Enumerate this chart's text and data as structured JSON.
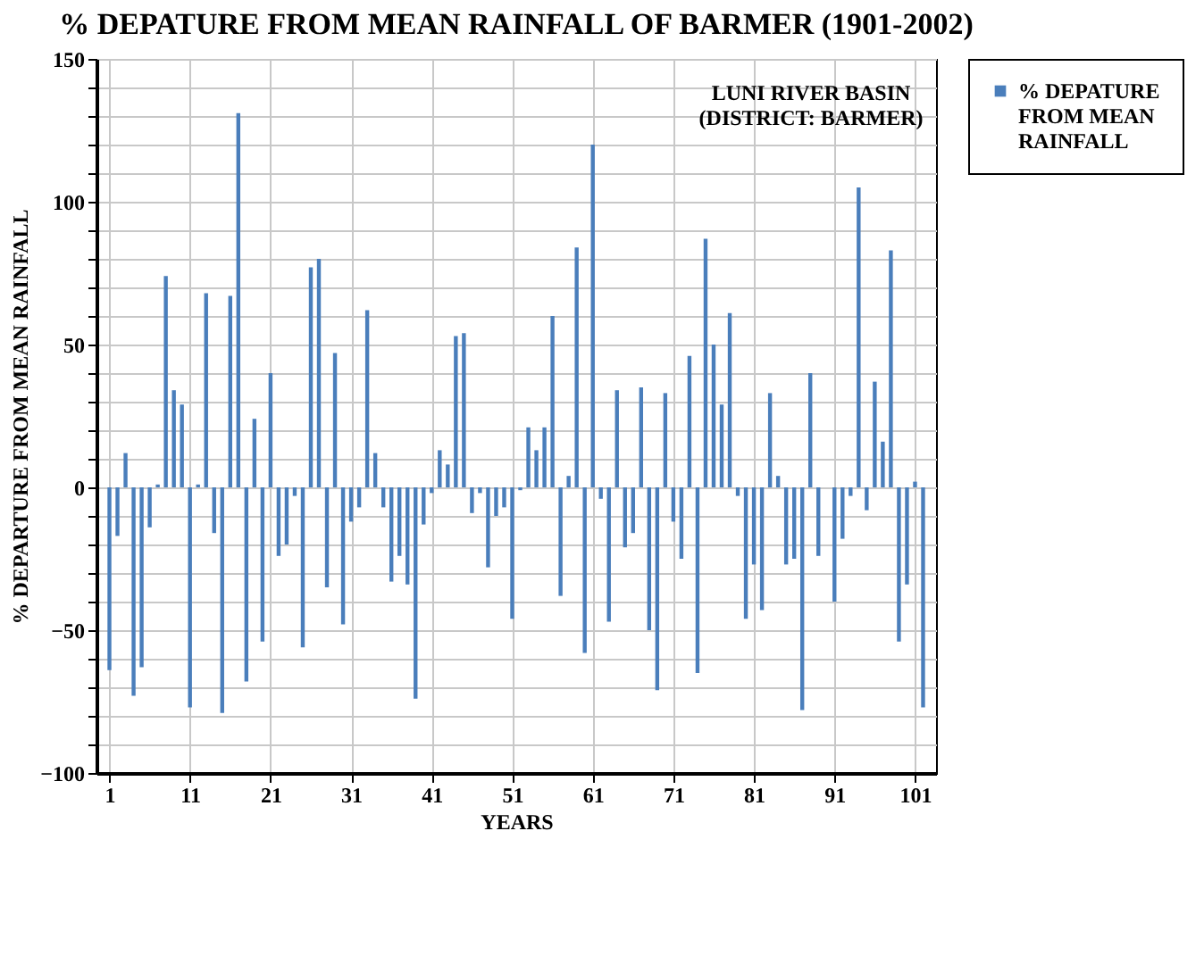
{
  "chart_data": {
    "type": "bar",
    "title": "% DEPATURE FROM MEAN RAINFALL OF BARMER (1901-2002)",
    "xlabel": "YEARS",
    "ylabel": "% DEPARTURE FROM MEAN RAINFALL",
    "annotations": [
      "LUNI RIVER BASIN\n(DISTRICT: BARMER)"
    ],
    "x": [
      1,
      2,
      3,
      4,
      5,
      6,
      7,
      8,
      9,
      10,
      11,
      12,
      13,
      14,
      15,
      16,
      17,
      18,
      19,
      20,
      21,
      22,
      23,
      24,
      25,
      26,
      27,
      28,
      29,
      30,
      31,
      32,
      33,
      34,
      35,
      36,
      37,
      38,
      39,
      40,
      41,
      42,
      43,
      44,
      45,
      46,
      47,
      48,
      49,
      50,
      51,
      52,
      53,
      54,
      55,
      56,
      57,
      58,
      59,
      60,
      61,
      62,
      63,
      64,
      65,
      66,
      67,
      68,
      69,
      70,
      71,
      72,
      73,
      74,
      75,
      76,
      77,
      78,
      79,
      80,
      81,
      82,
      83,
      84,
      85,
      86,
      87,
      88,
      89,
      90,
      91,
      92,
      93,
      94,
      95,
      96,
      97,
      98,
      99,
      100,
      101,
      102
    ],
    "series": [
      {
        "name": "% DEPATURE FROM MEAN RAINFALL",
        "color": "#4a7ebb",
        "values": [
          -64,
          -17,
          12,
          -73,
          -63,
          -14,
          1,
          74,
          34,
          29,
          -77,
          1,
          68,
          -16,
          -79,
          67,
          131,
          -68,
          24,
          -54,
          40,
          -24,
          -20,
          -3,
          -56,
          77,
          80,
          -35,
          47,
          -48,
          -12,
          -7,
          62,
          12,
          -7,
          -33,
          -24,
          -34,
          -74,
          -13,
          -2,
          13,
          8,
          53,
          54,
          -9,
          -2,
          -28,
          -10,
          -7,
          -46,
          -1,
          21,
          13,
          21,
          60,
          -38,
          4,
          84,
          -58,
          120,
          -4,
          -47,
          34,
          -21,
          -16,
          35,
          -50,
          -71,
          33,
          -12,
          -25,
          46,
          -65,
          87,
          50,
          29,
          61,
          -3,
          -46,
          -27,
          -43,
          33,
          4,
          -27,
          -25,
          -78,
          40,
          -24,
          0,
          -40,
          -18,
          -3,
          105,
          -8,
          37,
          16,
          83,
          -54,
          -34,
          2,
          -77
        ]
      }
    ],
    "xlim": [
      0.5,
      102.5
    ],
    "xticks": [
      1,
      11,
      21,
      31,
      41,
      51,
      61,
      71,
      81,
      91,
      101
    ],
    "ylim": [
      -100,
      150
    ],
    "yticks": [
      -100,
      {
        "value": -90,
        "label": null
      },
      {
        "value": -80,
        "label": null
      },
      {
        "value": -70,
        "label": null
      },
      {
        "value": -60,
        "label": null
      },
      -50,
      {
        "value": -40,
        "label": null
      },
      {
        "value": -30,
        "label": null
      },
      {
        "value": -20,
        "label": null
      },
      {
        "value": -10,
        "label": null
      },
      0,
      {
        "value": 10,
        "label": null
      },
      {
        "value": 20,
        "label": null
      },
      {
        "value": 30,
        "label": null
      },
      {
        "value": 40,
        "label": null
      },
      50,
      {
        "value": 60,
        "label": null
      },
      {
        "value": 70,
        "label": null
      },
      {
        "value": 80,
        "label": null
      },
      {
        "value": 90,
        "label": null
      },
      100,
      {
        "value": 110,
        "label": null
      },
      {
        "value": 120,
        "label": null
      },
      {
        "value": 130,
        "label": null
      },
      {
        "value": 140,
        "label": null
      },
      150
    ],
    "grid": true,
    "legend": "right"
  }
}
